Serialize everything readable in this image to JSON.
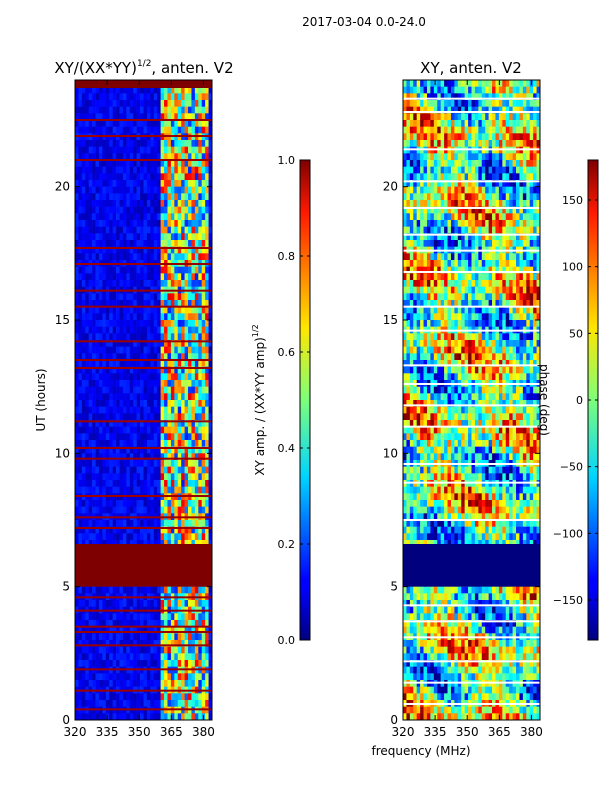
{
  "suptitle": "2017-03-04 0.0-24.0",
  "shared_xlabel": "frequency (MHz)",
  "chart_data": [
    {
      "type": "heatmap",
      "title_main": "XY/(XX*YY)",
      "title_sup": "1/2",
      "title_tail": ", anten. V2",
      "xlabel": "",
      "ylabel": "UT (hours)",
      "xlim": [
        320,
        384
      ],
      "ylim": [
        0,
        24
      ],
      "xticks": [
        {
          "value": 320,
          "label": "320"
        },
        {
          "value": 335,
          "label": "335"
        },
        {
          "value": 350,
          "label": "350"
        },
        {
          "value": 365,
          "label": "365"
        },
        {
          "value": 380,
          "label": "380"
        }
      ],
      "yticks": [
        {
          "value": 0,
          "label": "0"
        },
        {
          "value": 5,
          "label": "5"
        },
        {
          "value": 10,
          "label": "10"
        },
        {
          "value": 15,
          "label": "15"
        },
        {
          "value": 20,
          "label": "20"
        }
      ],
      "colorbar": {
        "label_main": "XY amp. / (XX*YY amp)",
        "label_sup": "1/2",
        "range": [
          0.0,
          1.0
        ],
        "ticks": [
          {
            "value": 0.0,
            "label": "0.0"
          },
          {
            "value": 0.2,
            "label": "0.2"
          },
          {
            "value": 0.4,
            "label": "0.4"
          },
          {
            "value": 0.6,
            "label": "0.6"
          },
          {
            "value": 0.8,
            "label": "0.8"
          },
          {
            "value": 1.0,
            "label": "1.0"
          }
        ],
        "colormap": "jet"
      },
      "features": {
        "flagged_block_hours": [
          5.0,
          6.6
        ],
        "flagged_top_hours": [
          23.7,
          24.0
        ],
        "active_band_mhz": [
          360,
          382
        ],
        "flag_line_hours": [
          0.4,
          1.1,
          1.9,
          2.8,
          3.3,
          3.5,
          4.1,
          4.6,
          7.2,
          7.6,
          8.4,
          9.8,
          10.2,
          11.2,
          13.2,
          13.5,
          14.2,
          15.5,
          16.1,
          17.1,
          17.7,
          21.0,
          21.9,
          22.5
        ]
      }
    },
    {
      "type": "heatmap",
      "title_main": "XY, anten. V2",
      "xlabel": "frequency (MHz)",
      "ylabel": "",
      "xlim": [
        320,
        384
      ],
      "ylim": [
        0,
        24
      ],
      "xticks": [
        {
          "value": 320,
          "label": "320"
        },
        {
          "value": 335,
          "label": "335"
        },
        {
          "value": 350,
          "label": "350"
        },
        {
          "value": 365,
          "label": "365"
        },
        {
          "value": 380,
          "label": "380"
        }
      ],
      "yticks": [
        {
          "value": 0,
          "label": "0"
        },
        {
          "value": 5,
          "label": "5"
        },
        {
          "value": 10,
          "label": "10"
        },
        {
          "value": 15,
          "label": "15"
        },
        {
          "value": 20,
          "label": "20"
        }
      ],
      "colorbar": {
        "label_main": "phase (deg)",
        "range": [
          -180,
          180
        ],
        "ticks": [
          {
            "value": -150,
            "label": "−150"
          },
          {
            "value": -100,
            "label": "−100"
          },
          {
            "value": -50,
            "label": "−50"
          },
          {
            "value": 0,
            "label": "0"
          },
          {
            "value": 50,
            "label": "50"
          },
          {
            "value": 100,
            "label": "100"
          },
          {
            "value": 150,
            "label": "150"
          }
        ],
        "colormap": "jet"
      },
      "features": {
        "flagged_block_hours": [
          5.0,
          6.6
        ],
        "flag_line_hours": [
          0.6,
          1.4,
          2.2,
          3.1,
          3.7,
          4.3,
          7.5,
          8.9,
          9.6,
          11.0,
          11.8,
          12.6,
          13.3,
          14.6,
          15.5,
          16.8,
          17.6,
          18.2,
          19.2,
          20.2,
          21.4,
          22.8,
          23.3
        ]
      }
    }
  ]
}
